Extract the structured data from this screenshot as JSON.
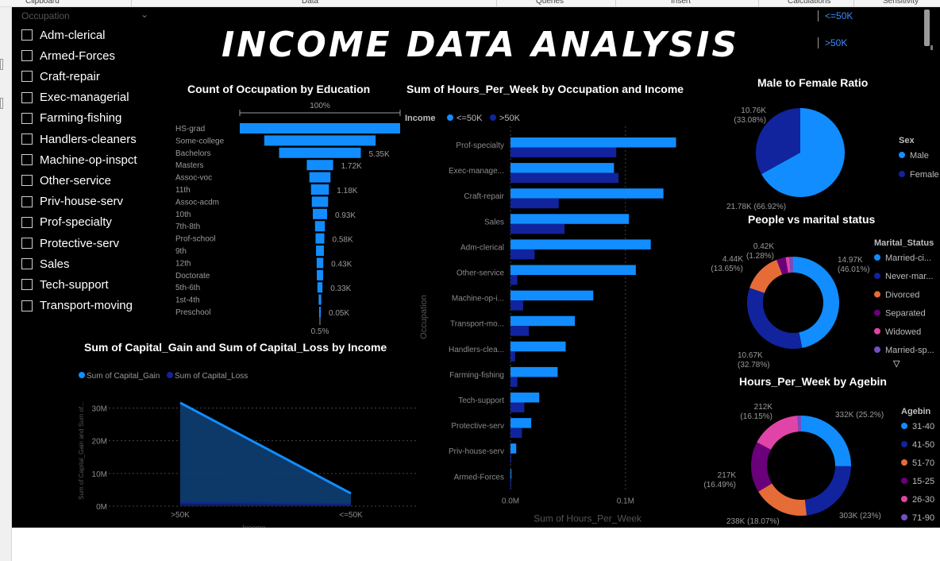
{
  "ribbon": {
    "groups": [
      "Clipboard",
      "Data",
      "Queries",
      "Insert",
      "Calculations",
      "Sensitivity"
    ]
  },
  "title": "INCOME DATA ANALYSIS",
  "slicer": {
    "header": "Occupation",
    "items": [
      "Adm-clerical",
      "Armed-Forces",
      "Craft-repair",
      "Exec-managerial",
      "Farming-fishing",
      "Handlers-cleaners",
      "Machine-op-inspct",
      "Other-service",
      "Priv-house-serv",
      "Prof-specialty",
      "Protective-serv",
      "Sales",
      "Tech-support",
      "Transport-moving"
    ]
  },
  "income_filter": {
    "options": [
      "<=50K",
      ">50K"
    ]
  },
  "colors": {
    "light_blue": "#118dff",
    "dark_blue": "#12239e",
    "orange": "#e66c37",
    "purple": "#6b007b",
    "pink": "#e044a7",
    "violet": "#744ec2",
    "teal": "#2ba0d8"
  },
  "chart_data": [
    {
      "type": "funnel",
      "title": "Count of Occupation by Education",
      "top_label": "100%",
      "bottom_label": "0.5%",
      "categories": [
        "HS-grad",
        "Some-college",
        "Bachelors",
        "Masters",
        "Assoc-voc",
        "11th",
        "Assoc-acdm",
        "10th",
        "7th-8th",
        "Prof-school",
        "9th",
        "12th",
        "Doctorate",
        "5th-6th",
        "1st-4th",
        "Preschool"
      ],
      "values": [
        10501,
        7291,
        5355,
        1723,
        1382,
        1175,
        1067,
        933,
        646,
        576,
        514,
        433,
        413,
        333,
        168,
        51
      ],
      "data_labels": [
        {
          "index": 2,
          "text": "5.35K"
        },
        {
          "index": 3,
          "text": "1.72K"
        },
        {
          "index": 5,
          "text": "1.18K"
        },
        {
          "index": 7,
          "text": "0.93K"
        },
        {
          "index": 9,
          "text": "0.58K"
        },
        {
          "index": 11,
          "text": "0.43K"
        },
        {
          "index": 13,
          "text": "0.33K"
        },
        {
          "index": 15,
          "text": "0.05K"
        }
      ]
    },
    {
      "type": "bar",
      "title": "Sum of Hours_Per_Week by Occupation and Income",
      "legend_title": "Income",
      "xlabel": "Sum of Hours_Per_Week",
      "ylabel": "Occupation",
      "xticks": [
        {
          "v": 0,
          "t": "0.0M"
        },
        {
          "v": 0.1,
          "t": "0.1M"
        }
      ],
      "xlim": [
        0,
        0.145
      ],
      "categories": [
        "Prof-specialty",
        "Exec-manage...",
        "Craft-repair",
        "Sales",
        "Adm-clerical",
        "Other-service",
        "Machine-op-i...",
        "Transport-mo...",
        "Handlers-clea...",
        "Farming-fishing",
        "Tech-support",
        "Protective-serv",
        "Priv-house-serv",
        "Armed-Forces"
      ],
      "series": [
        {
          "name": "<=50K",
          "values": [
            0.144,
            0.09,
            0.133,
            0.103,
            0.122,
            0.109,
            0.072,
            0.056,
            0.048,
            0.041,
            0.025,
            0.018,
            0.005,
            0.0008
          ]
        },
        {
          "name": ">50K",
          "values": [
            0.092,
            0.094,
            0.042,
            0.047,
            0.021,
            0.006,
            0.011,
            0.016,
            0.004,
            0.006,
            0.012,
            0.01,
            0.0003,
            0.0002
          ]
        }
      ]
    },
    {
      "type": "pie",
      "title": "Male to Female Ratio",
      "legend_title": "Sex",
      "slices": [
        {
          "name": "Male",
          "value": 21.78,
          "label": "21.78K (66.92%)"
        },
        {
          "name": "Female",
          "value": 10.76,
          "label": "10.76K (33.08%)"
        }
      ]
    },
    {
      "type": "donut",
      "title": "People vs marital status",
      "legend_title": "Marital_Status",
      "slices": [
        {
          "name": "Married-ci...",
          "value": 14.97,
          "label": "14.97K (46.01%)"
        },
        {
          "name": "Never-mar...",
          "value": 10.67,
          "label": "10.67K (32.78%)"
        },
        {
          "name": "Divorced",
          "value": 4.44,
          "label": "4.44K (13.65%)"
        },
        {
          "name": "Separated",
          "value": 1.03,
          "label": ""
        },
        {
          "name": "Widowed",
          "value": 0.42,
          "label": "0.42K (1.28%)"
        },
        {
          "name": "Married-sp...",
          "value": 0.42,
          "label": ""
        }
      ]
    },
    {
      "type": "donut",
      "title": "Hours_Per_Week by Agebin",
      "legend_title": "Agebin",
      "slices": [
        {
          "name": "31-40",
          "value": 332,
          "label": "332K (25.2%)"
        },
        {
          "name": "41-50",
          "value": 303,
          "label": "303K (23%)"
        },
        {
          "name": "51-70",
          "value": 238,
          "label": "238K (18.07%)"
        },
        {
          "name": "15-25",
          "value": 217,
          "label": "217K (16.49%)"
        },
        {
          "name": "26-30",
          "value": 212,
          "label": "212K (16.15%)"
        },
        {
          "name": "71-90",
          "value": 15,
          "label": ""
        }
      ]
    },
    {
      "type": "area",
      "title": "Sum of Capital_Gain and Sum of Capital_Loss by Income",
      "xlabel": "Income",
      "ylabel": "Sum of Capital_Gain and Sum of...",
      "categories": [
        ">50K",
        "<=50K"
      ],
      "yticks": [
        {
          "v": 0,
          "t": "0M"
        },
        {
          "v": 10,
          "t": "10M"
        },
        {
          "v": 20,
          "t": "20M"
        },
        {
          "v": 30,
          "t": "30M"
        }
      ],
      "ylim": [
        0,
        34
      ],
      "series": [
        {
          "name": "Sum of Capital_Gain",
          "values": [
            31.6,
            3.9
          ]
        },
        {
          "name": "Sum of Capital_Loss",
          "values": [
            1.0,
            0.7
          ]
        }
      ]
    }
  ]
}
